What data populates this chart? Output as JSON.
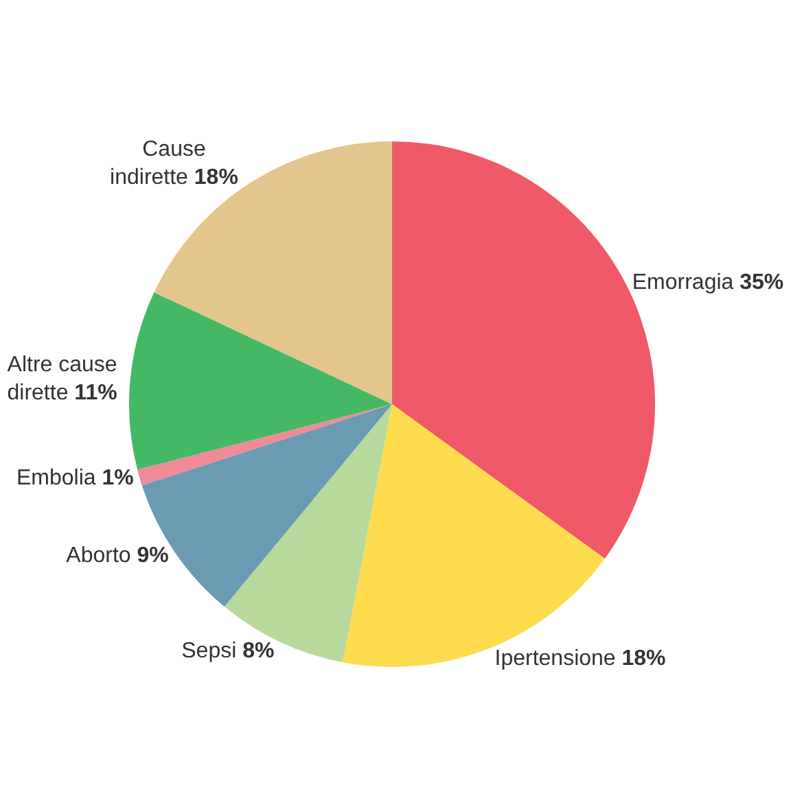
{
  "chart_data": {
    "type": "pie",
    "categories": [
      "Emorragia",
      "Ipertensione",
      "Sepsi",
      "Aborto",
      "Embolia",
      "Altre cause dirette",
      "Cause indirette"
    ],
    "values": [
      35,
      18,
      8,
      9,
      1,
      11,
      18
    ],
    "value_labels": [
      "35%",
      "18%",
      "8%",
      "9%",
      "1%",
      "11%",
      "18%"
    ],
    "colors": [
      "#f05a68",
      "#fddc4e",
      "#b8d99b",
      "#6b9ab3",
      "#f08a96",
      "#45b866",
      "#e3c68e"
    ],
    "legend": false
  }
}
